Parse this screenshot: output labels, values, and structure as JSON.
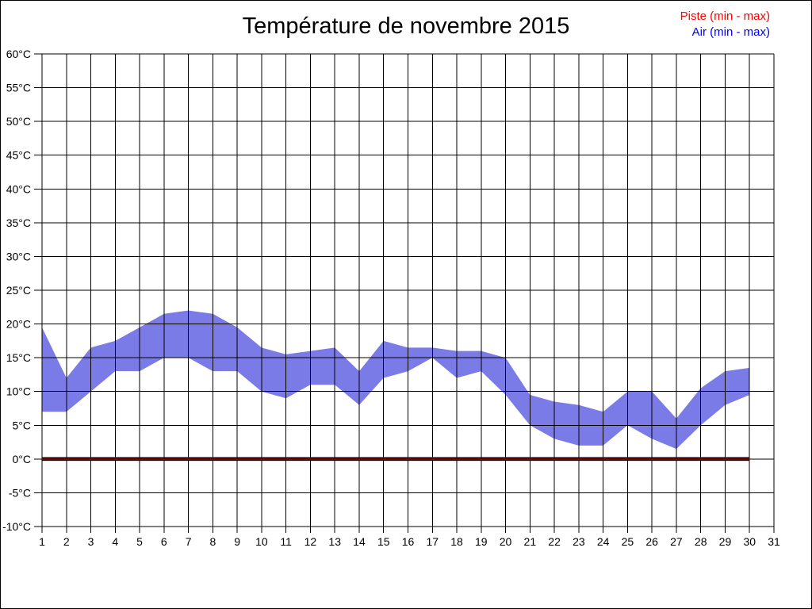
{
  "page": {
    "background": "#ffffff",
    "border_color": "#000000"
  },
  "chart_data": {
    "type": "area",
    "title": "Température de novembre 2015",
    "y_unit": "°C",
    "xlim": [
      1,
      31
    ],
    "ylim": [
      -10,
      60
    ],
    "y_tick_step": 5,
    "grid": true,
    "grid_color": "#000000",
    "legend_position": "top-right",
    "days": [
      1,
      2,
      3,
      4,
      5,
      6,
      7,
      8,
      9,
      10,
      11,
      12,
      13,
      14,
      15,
      16,
      17,
      18,
      19,
      20,
      21,
      22,
      23,
      24,
      25,
      26,
      27,
      28,
      29,
      30
    ],
    "series": [
      {
        "name": "Piste (min - max)",
        "legend_color": "#ff0000",
        "line_color": "#7a0000",
        "min": [
          0,
          0,
          0,
          0,
          0,
          0,
          0,
          0,
          0,
          0,
          0,
          0,
          0,
          0,
          0,
          0,
          0,
          0,
          0,
          0,
          0,
          0,
          0,
          0,
          0,
          0,
          0,
          0,
          0,
          0
        ],
        "max": [
          0,
          0,
          0,
          0,
          0,
          0,
          0,
          0,
          0,
          0,
          0,
          0,
          0,
          0,
          0,
          0,
          0,
          0,
          0,
          0,
          0,
          0,
          0,
          0,
          0,
          0,
          0,
          0,
          0,
          0
        ]
      },
      {
        "name": "Air (min - max)",
        "legend_color": "#0000ff",
        "fill_color": "#7b7be8",
        "min": [
          7,
          7,
          10,
          13,
          13,
          15,
          15,
          13,
          13,
          10,
          9,
          11,
          11,
          8,
          12,
          13,
          15,
          12,
          13,
          9.5,
          5,
          3,
          2,
          2,
          5,
          3,
          1.5,
          5,
          8,
          9.5
        ],
        "max": [
          19.5,
          12,
          16.5,
          17.5,
          19.5,
          21.5,
          22,
          21.5,
          19.5,
          16.5,
          15.5,
          16,
          16.5,
          13,
          17.5,
          16.5,
          16.5,
          16,
          16,
          15,
          9.5,
          8.5,
          8,
          7,
          10,
          10,
          6,
          10.5,
          13,
          13.5
        ]
      }
    ]
  }
}
